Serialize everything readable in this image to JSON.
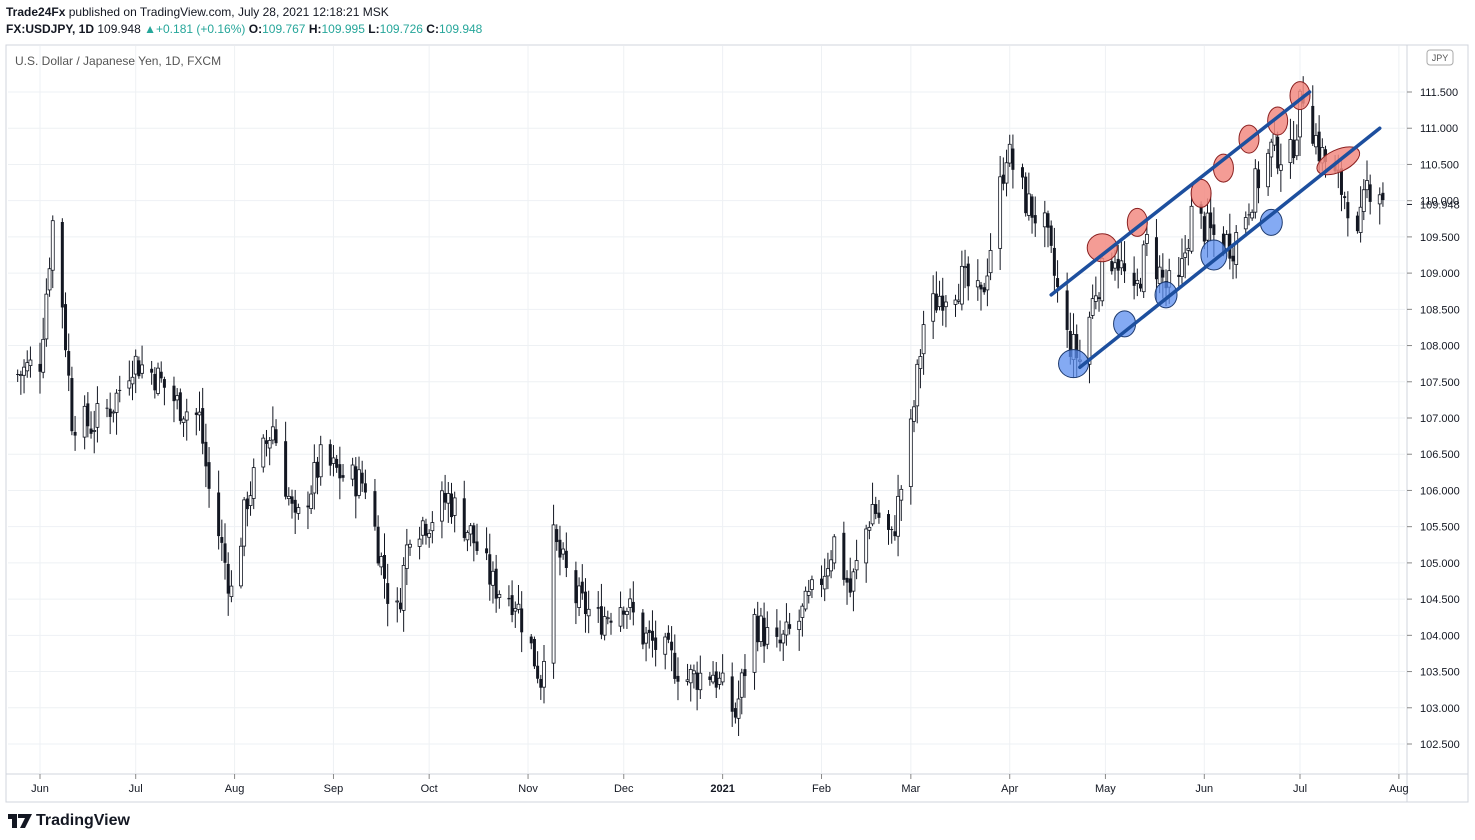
{
  "header": {
    "publisher": "Trade24Fx",
    "published_text": "published on TradingView.com, July 28, 2021 12:18:21 MSK",
    "symbol": "FX:USDJPY, 1D",
    "last": "109.948",
    "change": "+0.181 (+0.16%)",
    "o_label": "O:",
    "o": "109.767",
    "h_label": "H:",
    "h": "109.995",
    "l_label": "L:",
    "l": "109.726",
    "c_label": "C:",
    "c": "109.948"
  },
  "legend_title": "U.S. Dollar / Japanese Yen, 1D, FXCM",
  "currency_badge": "JPY",
  "footer": {
    "brand": "TradingView",
    "logo_icon": "tradingview-logo-icon"
  },
  "colors": {
    "candle": "#131722",
    "grid": "#eef1f4",
    "trendline": "#1d4f9e",
    "red_ellipse": "#f28b82",
    "blue_ellipse": "#5b8def",
    "price_label_bg": "#ffffff"
  },
  "chart_data": {
    "type": "candlestick",
    "title": "U.S. Dollar / Japanese Yen, 1D, FXCM",
    "ylim": [
      102.2,
      112.0
    ],
    "y_ticks": [
      "111.500",
      "111.000",
      "110.500",
      "110.000",
      "109.500",
      "109.000",
      "108.500",
      "108.000",
      "107.500",
      "107.000",
      "106.500",
      "106.000",
      "105.500",
      "105.000",
      "104.500",
      "104.000",
      "103.500",
      "103.000",
      "102.500"
    ],
    "current_price": "109.948",
    "x_ticks": [
      "Jun",
      "Jul",
      "Aug",
      "Sep",
      "Oct",
      "Nov",
      "Dec",
      "2021",
      "Feb",
      "Mar",
      "Apr",
      "May",
      "Jun",
      "Jul",
      "Aug"
    ],
    "grid": true,
    "series_path": [
      [
        "2020-05-25",
        107.6
      ],
      [
        "2020-06-01",
        107.8
      ],
      [
        "2020-06-05",
        109.7
      ],
      [
        "2020-06-08",
        108.6
      ],
      [
        "2020-06-11",
        107.0
      ],
      [
        "2020-06-17",
        106.9
      ],
      [
        "2020-06-24",
        107.2
      ],
      [
        "2020-06-30",
        107.8
      ],
      [
        "2020-07-07",
        107.6
      ],
      [
        "2020-07-14",
        107.2
      ],
      [
        "2020-07-21",
        107.0
      ],
      [
        "2020-07-24",
        106.0
      ],
      [
        "2020-07-31",
        104.6
      ],
      [
        "2020-08-05",
        105.9
      ],
      [
        "2020-08-13",
        106.9
      ],
      [
        "2020-08-20",
        105.5
      ],
      [
        "2020-08-28",
        106.4
      ],
      [
        "2020-09-04",
        106.2
      ],
      [
        "2020-09-11",
        106.1
      ],
      [
        "2020-09-18",
        104.6
      ],
      [
        "2020-09-21",
        104.3
      ],
      [
        "2020-09-25",
        105.5
      ],
      [
        "2020-10-01",
        105.6
      ],
      [
        "2020-10-07",
        105.9
      ],
      [
        "2020-10-14",
        105.4
      ],
      [
        "2020-10-21",
        104.7
      ],
      [
        "2020-10-28",
        104.5
      ],
      [
        "2020-11-05",
        103.4
      ],
      [
        "2020-11-09",
        105.3
      ],
      [
        "2020-11-16",
        104.5
      ],
      [
        "2020-11-23",
        104.2
      ],
      [
        "2020-12-01",
        104.5
      ],
      [
        "2020-12-07",
        104.0
      ],
      [
        "2020-12-15",
        103.7
      ],
      [
        "2020-12-21",
        103.4
      ],
      [
        "2020-12-29",
        103.5
      ],
      [
        "2021-01-05",
        102.9
      ],
      [
        "2021-01-11",
        104.2
      ],
      [
        "2021-01-18",
        103.8
      ],
      [
        "2021-01-25",
        104.2
      ],
      [
        "2021-02-01",
        104.8
      ],
      [
        "2021-02-05",
        105.3
      ],
      [
        "2021-02-10",
        104.6
      ],
      [
        "2021-02-17",
        105.8
      ],
      [
        "2021-02-23",
        105.3
      ],
      [
        "2021-03-01",
        106.8
      ],
      [
        "2021-03-05",
        108.3
      ],
      [
        "2021-03-10",
        108.7
      ],
      [
        "2021-03-17",
        108.9
      ],
      [
        "2021-03-23",
        108.6
      ],
      [
        "2021-03-31",
        110.7
      ],
      [
        "2021-04-06",
        110.0
      ],
      [
        "2021-04-12",
        109.6
      ],
      [
        "2021-04-19",
        108.1
      ],
      [
        "2021-04-23",
        107.8
      ],
      [
        "2021-04-28",
        108.8
      ],
      [
        "2021-05-04",
        109.3
      ],
      [
        "2021-05-10",
        108.6
      ],
      [
        "2021-05-14",
        109.4
      ],
      [
        "2021-05-20",
        108.8
      ],
      [
        "2021-05-24",
        108.8
      ],
      [
        "2021-05-28",
        109.8
      ],
      [
        "2021-06-04",
        109.5
      ],
      [
        "2021-06-10",
        109.4
      ],
      [
        "2021-06-17",
        110.2
      ],
      [
        "2021-06-22",
        110.7
      ],
      [
        "2021-06-28",
        110.6
      ],
      [
        "2021-07-02",
        111.5
      ],
      [
        "2021-07-07",
        110.7
      ],
      [
        "2021-07-12",
        110.3
      ],
      [
        "2021-07-16",
        110.0
      ],
      [
        "2021-07-19",
        109.4
      ],
      [
        "2021-07-22",
        110.2
      ],
      [
        "2021-07-26",
        110.2
      ],
      [
        "2021-07-28",
        109.9
      ]
    ],
    "trendlines": [
      {
        "from": [
          "2021-04-14",
          108.7
        ],
        "to": [
          "2021-07-04",
          111.5
        ]
      },
      {
        "from": [
          "2021-04-23",
          107.7
        ],
        "to": [
          "2021-07-26",
          111.0
        ]
      }
    ],
    "highlights_red": [
      [
        "2021-04-30",
        109.35
      ],
      [
        "2021-05-11",
        109.7
      ],
      [
        "2021-05-31",
        110.1
      ],
      [
        "2021-06-07",
        110.45
      ],
      [
        "2021-06-15",
        110.85
      ],
      [
        "2021-06-24",
        111.1
      ],
      [
        "2021-07-01",
        111.45
      ],
      [
        "2021-07-13",
        110.55
      ]
    ],
    "highlights_blue": [
      [
        "2021-04-21",
        107.75
      ],
      [
        "2021-05-07",
        108.3
      ],
      [
        "2021-05-20",
        108.7
      ],
      [
        "2021-06-04",
        109.25
      ],
      [
        "2021-06-22",
        109.7
      ]
    ]
  }
}
